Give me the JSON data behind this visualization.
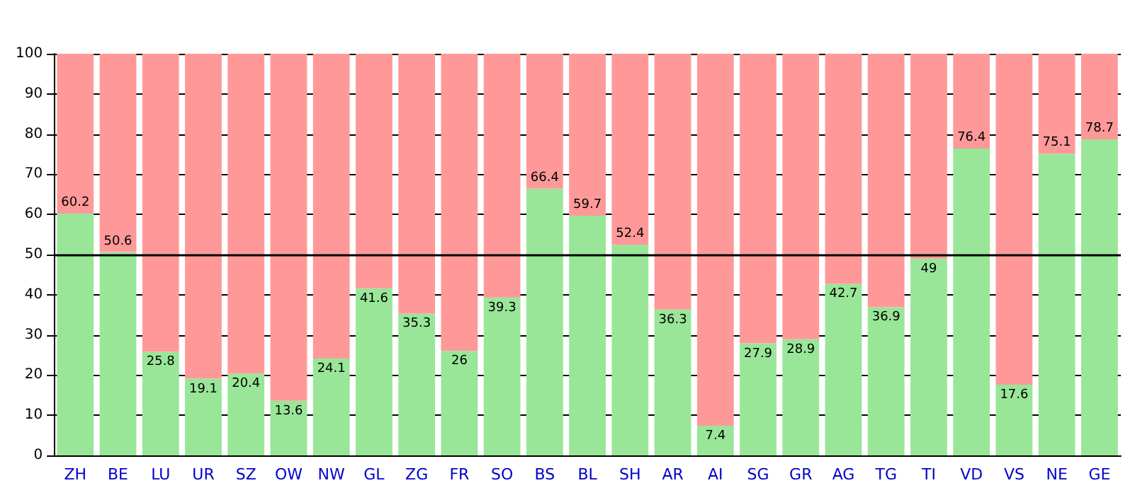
{
  "chart_data": {
    "type": "bar",
    "stacked": true,
    "categories": [
      "ZH",
      "BE",
      "LU",
      "UR",
      "SZ",
      "OW",
      "NW",
      "GL",
      "ZG",
      "FR",
      "SO",
      "BS",
      "BL",
      "SH",
      "AR",
      "AI",
      "SG",
      "GR",
      "AG",
      "TG",
      "TI",
      "VD",
      "VS",
      "NE",
      "GE"
    ],
    "series": [
      {
        "color": "#99e699",
        "values": [
          60.2,
          50.6,
          25.8,
          19.1,
          20.4,
          13.6,
          24.1,
          41.6,
          35.3,
          26,
          39.3,
          66.4,
          59.7,
          52.4,
          36.3,
          7.4,
          27.9,
          28.9,
          42.7,
          36.9,
          49,
          76.4,
          17.6,
          75.1,
          78.7
        ],
        "value_labels": [
          "60.2",
          "50.6",
          "25.8",
          "19.1",
          "20.4",
          "13.6",
          "24.1",
          "41.6",
          "35.3",
          "26",
          "39.3",
          "66.4",
          "59.7",
          "52.4",
          "36.3",
          "7.4",
          "27.9",
          "28.9",
          "42.7",
          "36.9",
          "49",
          "76.4",
          "17.6",
          "75.1",
          "78.7"
        ]
      },
      {
        "color": "#ff9999",
        "values": [
          39.8,
          49.4,
          74.2,
          80.9,
          79.6,
          86.4,
          75.9,
          58.4,
          64.7,
          74,
          60.7,
          33.6,
          40.3,
          47.6,
          63.7,
          92.6,
          72.1,
          71.1,
          57.3,
          63.1,
          51,
          23.6,
          82.4,
          24.9,
          21.3
        ]
      }
    ],
    "ylim": [
      0,
      100
    ],
    "yticks": [
      0,
      10,
      20,
      30,
      40,
      50,
      60,
      70,
      80,
      90,
      100
    ],
    "grid": "y",
    "ref_lines": [
      {
        "axis": "y",
        "value": 50
      }
    ]
  }
}
